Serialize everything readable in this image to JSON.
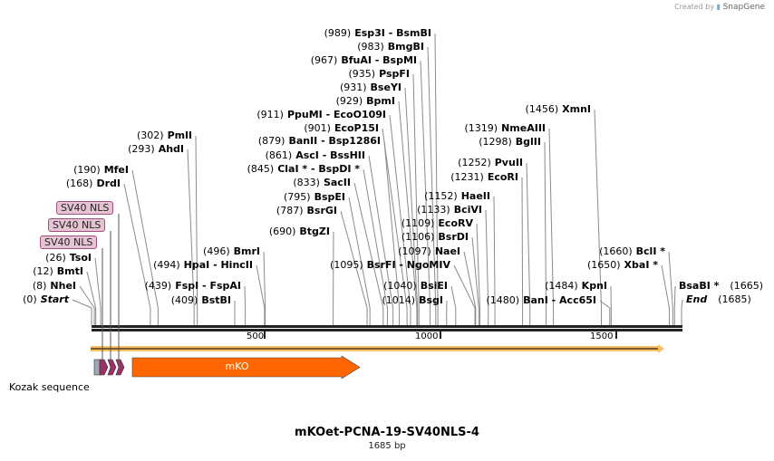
{
  "credit": {
    "text": "Created by",
    "brand": "SnapGene"
  },
  "title": "mKOet-PCNA-19-SV40NLS-4",
  "length_label": "1685 bp",
  "sequence_length": 1685,
  "ruler_ticks": [
    {
      "label": "500",
      "pos": 500
    },
    {
      "label": "1000",
      "pos": 1000
    },
    {
      "label": "1500",
      "pos": 1500
    }
  ],
  "sites": [
    {
      "pos": "(0)",
      "name": "Start",
      "italic": true,
      "bp": 0
    },
    {
      "pos": "(8)",
      "name": "NheI",
      "bp": 8
    },
    {
      "pos": "(12)",
      "name": "BmtI",
      "bp": 12
    },
    {
      "pos": "(26)",
      "name": "TsoI",
      "bp": 26
    },
    {
      "pos": "(168)",
      "name": "DrdI",
      "bp": 168
    },
    {
      "pos": "(190)",
      "name": "MfeI",
      "bp": 190
    },
    {
      "pos": "(293)",
      "name": "AhdI",
      "bp": 293
    },
    {
      "pos": "(302)",
      "name": "PmlI",
      "bp": 302
    },
    {
      "pos": "(409)",
      "name": "BstBI",
      "bp": 409
    },
    {
      "pos": "(439)",
      "name": "FspI  - FspAI",
      "bp": 439
    },
    {
      "pos": "(494)",
      "name": "HpaI  - HincII",
      "bp": 494
    },
    {
      "pos": "(496)",
      "name": "BmrI",
      "bp": 496
    },
    {
      "pos": "(690)",
      "name": "BtgZI",
      "bp": 690
    },
    {
      "pos": "(787)",
      "name": "BsrGI",
      "bp": 787
    },
    {
      "pos": "(795)",
      "name": "BspEI",
      "bp": 795
    },
    {
      "pos": "(833)",
      "name": "SacII",
      "bp": 833
    },
    {
      "pos": "(845)",
      "name": "ClaI * - BspDI *",
      "bp": 845
    },
    {
      "pos": "(861)",
      "name": "AscI  - BssHII",
      "bp": 861
    },
    {
      "pos": "(879)",
      "name": "BanII  - Bsp1286I",
      "bp": 879
    },
    {
      "pos": "(901)",
      "name": "EcoP15I",
      "bp": 901
    },
    {
      "pos": "(911)",
      "name": "PpuMI  - EcoO109I",
      "bp": 911
    },
    {
      "pos": "(929)",
      "name": "BpmI",
      "bp": 929
    },
    {
      "pos": "(931)",
      "name": "BseYI",
      "bp": 931
    },
    {
      "pos": "(935)",
      "name": "PspFI",
      "bp": 935
    },
    {
      "pos": "(967)",
      "name": "BfuAI  - BspMI",
      "bp": 967
    },
    {
      "pos": "(983)",
      "name": "BmgBI",
      "bp": 983
    },
    {
      "pos": "(989)",
      "name": "Esp3I  - BsmBI",
      "bp": 989
    },
    {
      "pos": "(1014)",
      "name": "BsgI",
      "bp": 1014
    },
    {
      "pos": "(1040)",
      "name": "BsiEI",
      "bp": 1040
    },
    {
      "pos": "(1095)",
      "name": "BsrFI  - NgoMIV",
      "bp": 1095
    },
    {
      "pos": "(1097)",
      "name": "NaeI",
      "bp": 1097
    },
    {
      "pos": "(1106)",
      "name": "BsrDI",
      "bp": 1106
    },
    {
      "pos": "(1109)",
      "name": "EcoRV",
      "bp": 1109
    },
    {
      "pos": "(1133)",
      "name": "BciVI",
      "bp": 1133
    },
    {
      "pos": "(1152)",
      "name": "HaeII",
      "bp": 1152
    },
    {
      "pos": "(1231)",
      "name": "EcoRI",
      "bp": 1231
    },
    {
      "pos": "(1252)",
      "name": "PvuII",
      "bp": 1252
    },
    {
      "pos": "(1298)",
      "name": "BglII",
      "bp": 1298
    },
    {
      "pos": "(1319)",
      "name": "NmeAIII",
      "bp": 1319
    },
    {
      "pos": "(1456)",
      "name": "XmnI",
      "bp": 1456
    },
    {
      "pos": "(1480)",
      "name": "BanI  - Acc65I",
      "bp": 1480
    },
    {
      "pos": "(1484)",
      "name": "KpnI",
      "bp": 1484
    },
    {
      "pos": "(1650)",
      "name": "XbaI *",
      "bp": 1650
    },
    {
      "pos": "(1660)",
      "name": "BclI *",
      "bp": 1660
    },
    {
      "pos": "(1665)",
      "name": "BsaBI *",
      "bp": 1665,
      "right": true
    },
    {
      "pos": "(1685)",
      "name": "End",
      "italic": true,
      "bp": 1685,
      "right": true
    }
  ],
  "features": [
    {
      "label": "SV40 NLS",
      "type": "nls"
    },
    {
      "label": "SV40 NLS",
      "type": "nls"
    },
    {
      "label": "SV40 NLS",
      "type": "nls"
    },
    {
      "label": "mKO",
      "type": "cds",
      "color": "#ff6600"
    },
    {
      "label": "Kozak sequence",
      "type": "misc",
      "color": "#a0a8b4"
    }
  ],
  "colors": {
    "nls": "#993366",
    "nls_label_bg": "#e6c3d3",
    "mko": "#ff6600",
    "orf": "#f5c067",
    "backbone": "#222222"
  }
}
